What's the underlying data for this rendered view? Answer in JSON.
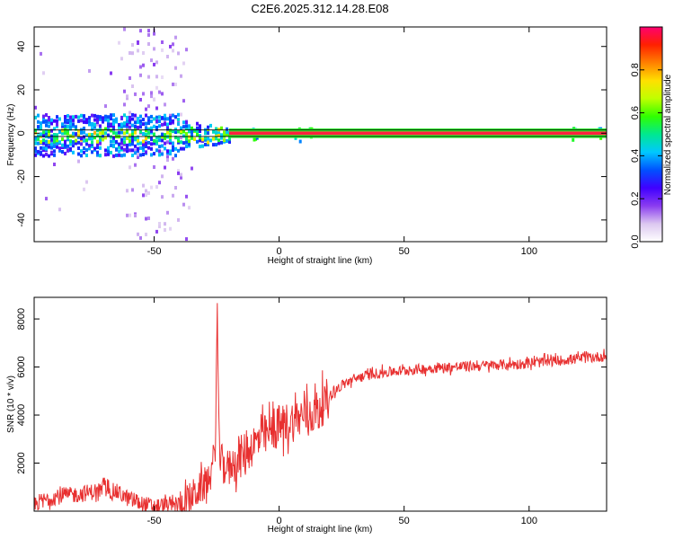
{
  "title": "C2E6.2025.312.14.28.E08",
  "chart_data": [
    {
      "type": "heatmap",
      "xlabel": "Height of straight line (km)",
      "ylabel": "Frequency (Hz)",
      "xlim": [
        -98,
        131
      ],
      "ylim": [
        -50,
        49
      ],
      "xticks": [
        -50,
        0,
        50,
        100
      ],
      "yticks": [
        -40,
        -20,
        0,
        20,
        40
      ],
      "grid": false,
      "center_line_hz": 0,
      "carrier_band_hz": [
        -1.5,
        1.5
      ],
      "colorbar": {
        "label": "Normalized spectral amplitude",
        "ticks": [
          0.0,
          0.2,
          0.4,
          0.6,
          0.8
        ],
        "range": [
          0,
          1
        ],
        "colors": [
          "#ffffff",
          "#dcc8f0",
          "#8a3cf0",
          "#4000ff",
          "#0050ff",
          "#00c8ff",
          "#00e890",
          "#30ff00",
          "#c0ff00",
          "#ffe000",
          "#ff8000",
          "#ff2000",
          "#ff0070"
        ]
      }
    },
    {
      "type": "line",
      "xlabel": "Height of straight line (km)",
      "ylabel": "SNR (10 * v/v)",
      "xlim": [
        -98,
        131
      ],
      "ylim": [
        0,
        8900
      ],
      "xticks": [
        -50,
        0,
        50,
        100
      ],
      "yticks": [
        2000,
        4000,
        6000,
        8000
      ],
      "grid": false,
      "color": "#e83030",
      "series_anchors": {
        "x": [
          -98,
          -90,
          -80,
          -75,
          -70,
          -65,
          -60,
          -55,
          -50,
          -45,
          -40,
          -37,
          -33,
          -29,
          -27,
          -25.5,
          -24.8,
          -24,
          -22,
          -18,
          -14,
          -10,
          -6,
          -2,
          2,
          6,
          10,
          14,
          18,
          22,
          26,
          30,
          35,
          40,
          50,
          60,
          70,
          80,
          90,
          100,
          110,
          120,
          131
        ],
        "y": [
          300,
          600,
          700,
          800,
          900,
          800,
          500,
          300,
          200,
          250,
          300,
          400,
          800,
          1200,
          1600,
          2800,
          8500,
          2500,
          1800,
          2000,
          2400,
          2800,
          3100,
          3400,
          3600,
          3800,
          4000,
          4100,
          4500,
          5000,
          5300,
          5500,
          5650,
          5750,
          5850,
          5950,
          6000,
          6050,
          6100,
          6150,
          6250,
          6350,
          6450
        ]
      }
    }
  ]
}
